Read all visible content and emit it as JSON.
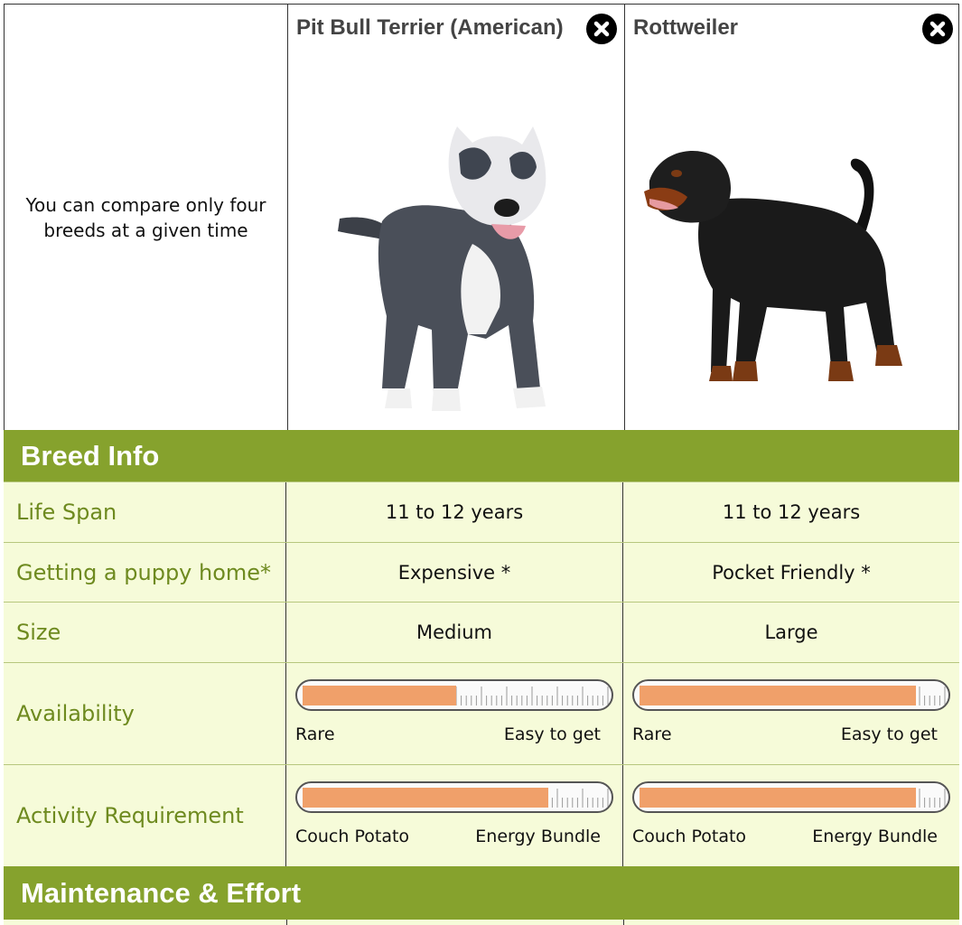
{
  "intro": {
    "text": "You can compare only four breeds at a given time"
  },
  "breeds": [
    {
      "name": "Pit Bull Terrier (American)",
      "image": "pit-bull-photo"
    },
    {
      "name": "Rottweiler",
      "image": "rottweiler-photo"
    }
  ],
  "icons": {
    "close": "close-icon"
  },
  "colors": {
    "section_band": "#86a22d",
    "label_text": "#6e8a1f",
    "row_bg": "#f6fbd9",
    "meter_fill": "#f0a06a"
  },
  "sections": {
    "breed_info": "Breed Info",
    "maintenance": "Maintenance & Effort"
  },
  "rows": {
    "life_span": {
      "label": "Life Span",
      "values": [
        "11 to 12 years",
        "11 to 12 years"
      ]
    },
    "puppy_home": {
      "label": "Getting a puppy home*",
      "values": [
        "Expensive *",
        "Pocket Friendly *"
      ]
    },
    "size": {
      "label": "Size",
      "values": [
        "Medium",
        "Large"
      ]
    },
    "availability": {
      "label": "Availability",
      "low": "Rare",
      "high": "Easy to get",
      "levels": [
        0.5,
        0.9
      ]
    },
    "activity": {
      "label": "Activity Requirement",
      "low": "Couch Potato",
      "high": "Energy Bundle",
      "levels": [
        0.8,
        0.9
      ]
    }
  }
}
